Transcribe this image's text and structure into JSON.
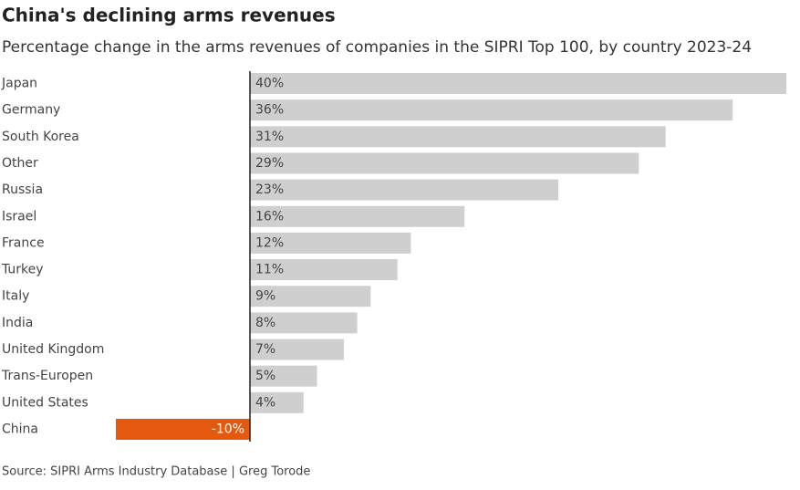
{
  "chart_data": {
    "type": "hbar",
    "title": "China's declining arms revenues",
    "subtitle": "Percentage change in the arms revenues of companies in the SIPRI Top 100, by country 2023-24",
    "source": "Source: SIPRI Arms Industry Database | Greg Torode",
    "categories": [
      "Japan",
      "Germany",
      "South Korea",
      "Other",
      "Russia",
      "Israel",
      "France",
      "Turkey",
      "Italy",
      "India",
      "United Kingdom",
      "Trans-Europen",
      "United States",
      "China"
    ],
    "values": [
      40,
      36,
      31,
      29,
      23,
      16,
      12,
      11,
      9,
      8,
      7,
      5,
      4,
      -10
    ],
    "value_labels": [
      "40%",
      "36%",
      "31%",
      "29%",
      "23%",
      "16%",
      "12%",
      "11%",
      "9%",
      "8%",
      "7%",
      "5%",
      "4%",
      "-10%"
    ],
    "color": "#cfcfcf",
    "negative_color": "#e35a0e"
  }
}
